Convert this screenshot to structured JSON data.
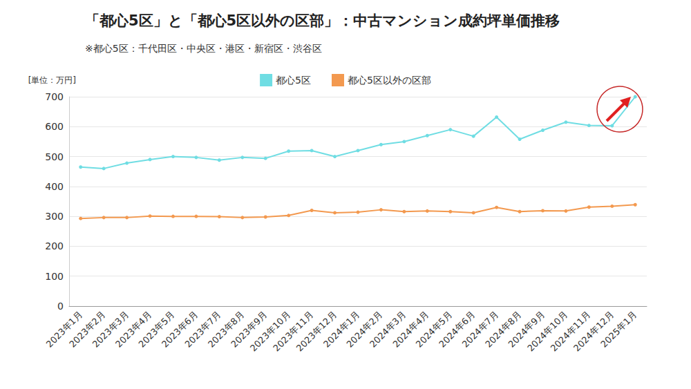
{
  "chart_data": {
    "type": "line",
    "title": "「都心5区」と「都心5区以外の区部」：中古マンション成約坪単価推移",
    "subtitle": "※都心5区：千代田区・中央区・港区・新宿区・渋谷区",
    "y_label": "[単位：万円]",
    "categories": [
      "2023年1月",
      "2023年2月",
      "2023年3月",
      "2023年4月",
      "2023年5月",
      "2023年6月",
      "2023年7月",
      "2023年8月",
      "2023年9月",
      "2023年10月",
      "2023年11月",
      "2023年12月",
      "2024年1月",
      "2024年2月",
      "2024年3月",
      "2024年4月",
      "2024年5月",
      "2024年6月",
      "2024年7月",
      "2024年8月",
      "2024年9月",
      "2024年10月",
      "2024年11月",
      "2024年12月",
      "2025年1月"
    ],
    "series": [
      {
        "name": "都心5区",
        "color": "#6fdde3",
        "marker": "circle",
        "values": [
          465,
          460,
          478,
          490,
          500,
          497,
          488,
          497,
          494,
          518,
          520,
          500,
          520,
          540,
          550,
          570,
          590,
          568,
          632,
          558,
          588,
          615,
          604,
          603,
          700
        ]
      },
      {
        "name": "都心5区以外の区部",
        "color": "#f3994f",
        "marker": "circle",
        "values": [
          293,
          296,
          296,
          301,
          300,
          300,
          299,
          296,
          298,
          303,
          320,
          312,
          314,
          322,
          316,
          318,
          316,
          312,
          330,
          316,
          319,
          318,
          331,
          334,
          339
        ]
      }
    ],
    "ylim": [
      0,
      700
    ],
    "yticks": [
      0,
      100,
      200,
      300,
      400,
      500,
      600,
      700
    ],
    "grid": true,
    "legend": "top"
  }
}
